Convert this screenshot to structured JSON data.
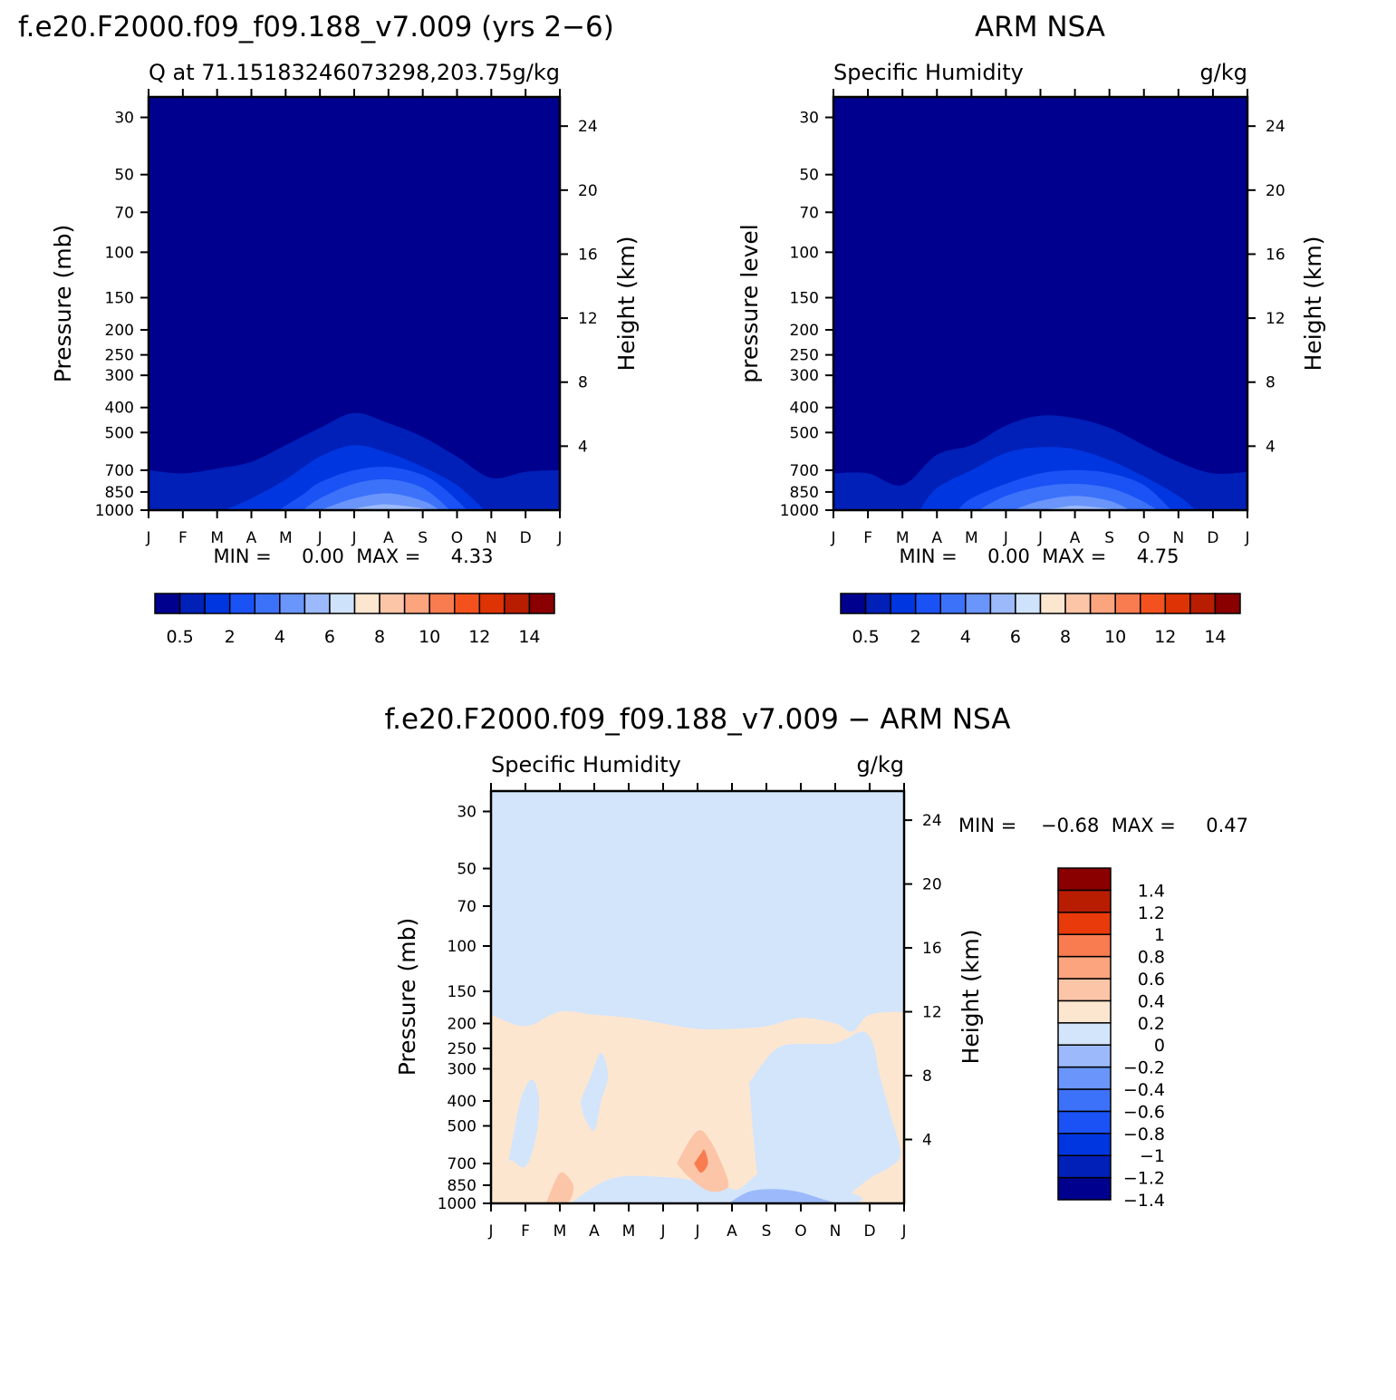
{
  "colors": {
    "scale16": [
      "#00008f",
      "#0020b8",
      "#0036e0",
      "#1a52f5",
      "#3c71fa",
      "#6a95fb",
      "#9cbafb",
      "#cfe2fb",
      "#fde6d0",
      "#fcc5a8",
      "#fba47e",
      "#f97b50",
      "#f3521f",
      "#de3304",
      "#b81d02",
      "#8a0000"
    ],
    "scale15_diff": [
      "#00008f",
      "#0020b8",
      "#0036e0",
      "#1a52f5",
      "#3c71fa",
      "#6a95fb",
      "#9cbafb",
      "#d3e5fb",
      "#fde6d0",
      "#fcc5a8",
      "#fba47e",
      "#f97b50",
      "#e83a0a",
      "#b81d02",
      "#8a0000"
    ]
  },
  "chart_data": [
    {
      "type": "heatmap",
      "panel_title": "f.e20.F2000.f09_f09.188_v7.009 (yrs 2−6)",
      "subtitle_left": "Q at 71.15183246073298,203.75",
      "subtitle_right": "g/kg",
      "ylabel": "Pressure (mb)",
      "ylabel_right": "Height (km)",
      "x_ticks": [
        "J",
        "F",
        "M",
        "A",
        "M",
        "J",
        "J",
        "A",
        "S",
        "O",
        "N",
        "D",
        "J"
      ],
      "y_ticks": [
        30,
        50,
        70,
        100,
        150,
        200,
        250,
        300,
        400,
        500,
        700,
        850,
        1000
      ],
      "y_ticks_right": [
        24,
        20,
        16,
        12,
        8,
        4
      ],
      "ylim": [
        1000,
        25
      ],
      "min_max_text": "MIN =     0.00  MAX =     4.33",
      "min": 0.0,
      "max": 4.33,
      "colorbar_labels": [
        "0.5",
        "2",
        "4",
        "6",
        "8",
        "10",
        "12",
        "14"
      ],
      "contour_levels": [
        0.5,
        1,
        1.5,
        2,
        2.5,
        3,
        3.5,
        4
      ],
      "level_tops": [
        {
          "level": 0.5,
          "months": [
            0,
            1,
            2,
            3,
            4,
            5,
            6,
            7,
            8,
            9,
            10,
            11,
            12
          ],
          "p": [
            700,
            720,
            690,
            650,
            560,
            480,
            420,
            460,
            520,
            620,
            750,
            710,
            700
          ]
        },
        {
          "level": 1,
          "months": [
            2.2,
            3,
            4,
            5,
            6,
            7,
            8,
            9,
            9.8
          ],
          "p": [
            1000,
            900,
            760,
            620,
            560,
            600,
            680,
            800,
            1000
          ]
        },
        {
          "level": 1.5,
          "months": [
            3.8,
            4.5,
            5,
            6,
            7,
            8,
            8.6,
            9.3
          ],
          "p": [
            1000,
            870,
            780,
            700,
            680,
            730,
            820,
            1000
          ]
        },
        {
          "level": 2,
          "months": [
            4.5,
            5,
            6,
            7,
            8,
            8.8
          ],
          "p": [
            1000,
            900,
            790,
            760,
            820,
            1000
          ]
        },
        {
          "level": 3,
          "months": [
            5,
            6,
            7,
            8,
            8.5
          ],
          "p": [
            1000,
            900,
            860,
            920,
            1000
          ]
        },
        {
          "level": 4,
          "months": [
            5.8,
            6.5,
            7,
            7.8,
            8.2
          ],
          "p": [
            1000,
            960,
            950,
            975,
            1000
          ]
        }
      ]
    },
    {
      "type": "heatmap",
      "panel_title": "ARM NSA",
      "subtitle_left": "Specific Humidity",
      "subtitle_right": "g/kg",
      "ylabel": "pressure level",
      "ylabel_right": "Height (km)",
      "x_ticks": [
        "J",
        "F",
        "M",
        "A",
        "M",
        "J",
        "J",
        "A",
        "S",
        "O",
        "N",
        "D",
        "J"
      ],
      "y_ticks": [
        30,
        50,
        70,
        100,
        150,
        200,
        250,
        300,
        400,
        500,
        700,
        850,
        1000
      ],
      "y_ticks_right": [
        24,
        20,
        16,
        12,
        8,
        4
      ],
      "ylim": [
        1000,
        25
      ],
      "min_max_text": "MIN =     0.00  MAX =     4.75",
      "min": 0.0,
      "max": 4.75,
      "colorbar_labels": [
        "0.5",
        "2",
        "4",
        "6",
        "8",
        "10",
        "12",
        "14"
      ],
      "contour_levels": [
        0.5,
        1,
        1.5,
        2,
        2.5,
        3,
        3.5,
        4
      ],
      "level_tops": [
        {
          "level": 0.5,
          "months": [
            0,
            1,
            2,
            3,
            4,
            5,
            6,
            7,
            8,
            9,
            10,
            11,
            12
          ],
          "p": [
            720,
            720,
            800,
            610,
            560,
            470,
            430,
            440,
            480,
            560,
            650,
            720,
            710
          ]
        },
        {
          "level": 1,
          "months": [
            2.5,
            3,
            4,
            5,
            6,
            7,
            8,
            9,
            10,
            10.5
          ],
          "p": [
            1000,
            820,
            700,
            600,
            570,
            580,
            640,
            740,
            880,
            1000
          ]
        },
        {
          "level": 1.5,
          "months": [
            3.6,
            4,
            5,
            6,
            7,
            8,
            9,
            9.8
          ],
          "p": [
            1000,
            900,
            790,
            720,
            700,
            720,
            800,
            1000
          ]
        },
        {
          "level": 2,
          "months": [
            4.2,
            5,
            6,
            7,
            8,
            8.8,
            9.4
          ],
          "p": [
            1000,
            880,
            810,
            790,
            820,
            900,
            1000
          ]
        },
        {
          "level": 3,
          "months": [
            5.2,
            6,
            7,
            8,
            8.6
          ],
          "p": [
            1000,
            920,
            880,
            920,
            1000
          ]
        },
        {
          "level": 4,
          "months": [
            6,
            6.5,
            7,
            7.8,
            8.2
          ],
          "p": [
            1000,
            980,
            960,
            980,
            1000
          ]
        }
      ]
    },
    {
      "type": "heatmap",
      "panel_title": "f.e20.F2000.f09_f09.188_v7.009 − ARM NSA",
      "subtitle_left": "Specific Humidity",
      "subtitle_right": "g/kg",
      "ylabel": "Pressure (mb)",
      "ylabel_right": "Height (km)",
      "x_ticks": [
        "J",
        "F",
        "M",
        "A",
        "M",
        "J",
        "J",
        "A",
        "S",
        "O",
        "N",
        "D",
        "J"
      ],
      "y_ticks": [
        30,
        50,
        70,
        100,
        150,
        200,
        250,
        300,
        400,
        500,
        700,
        850,
        1000
      ],
      "y_ticks_right": [
        24,
        20,
        16,
        12,
        8,
        4
      ],
      "ylim": [
        1000,
        25
      ],
      "min_max_text": "MIN =    −0.68  MAX =     0.47",
      "min": -0.68,
      "max": 0.47,
      "colorbar_labels": [
        "1.4",
        "1.2",
        "1",
        "0.8",
        "0.6",
        "0.4",
        "0.2",
        "0",
        "−0.2",
        "−0.4",
        "−0.6",
        "−0.8",
        "−1",
        "−1.2",
        "−1.4"
      ],
      "zero_line": {
        "months": [
          0,
          1,
          2,
          3,
          4,
          5,
          6,
          7,
          8,
          9,
          10,
          10.5,
          11,
          12
        ],
        "p": [
          185,
          205,
          180,
          185,
          190,
          200,
          210,
          210,
          205,
          190,
          200,
          215,
          185,
          180
        ]
      },
      "negative_patches": [
        {
          "months": [
            0.5,
            0.7,
            0.9,
            1.2,
            1.4,
            1.3,
            1.0,
            0.6,
            0.5
          ],
          "p": [
            700,
            500,
            380,
            330,
            400,
            560,
            720,
            680,
            700
          ]
        },
        {
          "months": [
            2.6,
            2.9,
            3.2,
            3.4,
            3.2,
            3.0,
            2.7,
            2.6
          ],
          "p": [
            400,
            320,
            260,
            320,
            400,
            520,
            460,
            400
          ]
        },
        {
          "months": [
            7.5,
            8.3,
            9.2,
            9.9,
            10.3,
            10.8,
            11.1,
            11.3,
            11.6,
            11.9,
            11.6,
            11.3,
            11.0,
            10.6,
            10.1,
            9.6,
            9.0,
            8.4,
            7.8,
            7.5
          ],
          "p": [
            340,
            250,
            240,
            240,
            230,
            215,
            240,
            320,
            450,
            640,
            720,
            760,
            800,
            880,
            1000,
            1000,
            1000,
            1000,
            850,
            340
          ]
        },
        {
          "months": [
            2.3,
            3.5,
            5.0,
            6.0,
            6.8,
            7.2,
            7.8,
            8.4,
            9.0,
            9.6,
            10.0,
            10.3,
            2.6,
            2.3
          ],
          "p": [
            1000,
            800,
            790,
            820,
            860,
            880,
            760,
            720,
            760,
            820,
            860,
            1000,
            1000,
            1000
          ]
        }
      ],
      "deep_negative_patch": {
        "months": [
          6.9,
          7.5,
          8.2,
          8.9,
          9.6,
          10.0,
          9.3,
          8.4,
          7.4,
          6.9
        ],
        "p": [
          1000,
          900,
          880,
          900,
          960,
          1000,
          1000,
          1000,
          1000,
          1000
        ]
      },
      "positive_patches": [
        {
          "months": [
            1.6,
            1.9,
            2.1,
            2.4,
            2.2,
            1.6
          ],
          "p": [
            1000,
            800,
            760,
            860,
            1000,
            1000
          ],
          "level": 0.4
        },
        {
          "months": [
            5.4,
            5.8,
            6.1,
            6.4,
            6.7,
            6.9,
            6.6,
            6.2,
            5.7,
            5.4
          ],
          "p": [
            700,
            560,
            520,
            580,
            700,
            850,
            900,
            880,
            780,
            700
          ],
          "level": 0.4
        },
        {
          "months": [
            5.9,
            6.1,
            6.2,
            6.3,
            6.1,
            5.9
          ],
          "p": [
            700,
            640,
            620,
            700,
            760,
            700
          ],
          "level": 0.6
        }
      ]
    }
  ]
}
